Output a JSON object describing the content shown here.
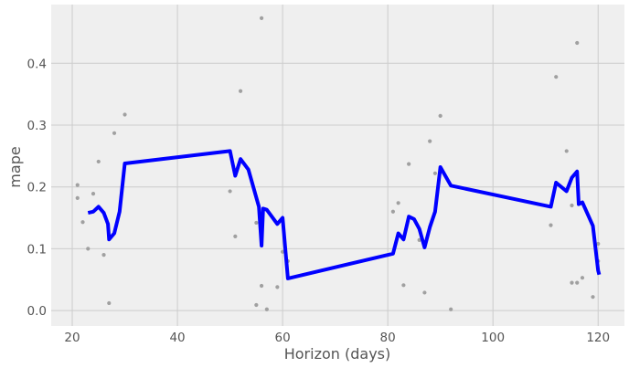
{
  "chart_data": {
    "type": "line",
    "title": "",
    "xlabel": "Horizon (days)",
    "ylabel": "mape",
    "xlim": [
      16,
      125
    ],
    "ylim": [
      -0.025,
      0.495
    ],
    "xticks": [
      20,
      40,
      60,
      80,
      100,
      120
    ],
    "xtick_labels": [
      "20",
      "40",
      "60",
      "80",
      "100",
      "120"
    ],
    "yticks": [
      0.0,
      0.1,
      0.2,
      0.3,
      0.4
    ],
    "ytick_labels": [
      "0.0",
      "0.1",
      "0.2",
      "0.3",
      "0.4"
    ],
    "grid": true,
    "colors": {
      "background": "#efefef",
      "grid": "#cccccc",
      "line": "#0000ff",
      "points": "#a0a0a0"
    },
    "series": [
      {
        "type": "line",
        "x": [
          23,
          24,
          25,
          26,
          26.8,
          27,
          28,
          29,
          30,
          50,
          51,
          52,
          53.5,
          55.5,
          56,
          56.3,
          57,
          59,
          60,
          61,
          81,
          82,
          83,
          84,
          85,
          86,
          87,
          88,
          89,
          90,
          92,
          111,
          112,
          114,
          115,
          116,
          116.3,
          117,
          119,
          120,
          120.2
        ],
        "y": [
          0.158,
          0.16,
          0.168,
          0.158,
          0.14,
          0.115,
          0.125,
          0.16,
          0.238,
          0.258,
          0.218,
          0.245,
          0.228,
          0.168,
          0.105,
          0.165,
          0.163,
          0.14,
          0.15,
          0.052,
          0.092,
          0.125,
          0.115,
          0.152,
          0.148,
          0.132,
          0.102,
          0.135,
          0.16,
          0.232,
          0.202,
          0.168,
          0.207,
          0.193,
          0.215,
          0.225,
          0.172,
          0.175,
          0.137,
          0.065,
          0.058
        ]
      },
      {
        "type": "scatter",
        "x": [
          21,
          21,
          22,
          23,
          24,
          25,
          26,
          27,
          28,
          30,
          50,
          51,
          52,
          55,
          55,
          56,
          56,
          57,
          59,
          60,
          61,
          81,
          82,
          83,
          84,
          86,
          87,
          88,
          89,
          90,
          92,
          111,
          112,
          114,
          115,
          115,
          116,
          116,
          117,
          119,
          120,
          120
        ],
        "y": [
          0.203,
          0.182,
          0.143,
          0.1,
          0.189,
          0.241,
          0.09,
          0.012,
          0.287,
          0.317,
          0.193,
          0.12,
          0.355,
          0.142,
          0.009,
          0.473,
          0.04,
          0.002,
          0.038,
          0.095,
          0.08,
          0.16,
          0.174,
          0.041,
          0.237,
          0.114,
          0.029,
          0.274,
          0.222,
          0.315,
          0.002,
          0.138,
          0.378,
          0.258,
          0.17,
          0.045,
          0.433,
          0.045,
          0.053,
          0.022,
          0.108,
          0.08
        ]
      }
    ]
  }
}
